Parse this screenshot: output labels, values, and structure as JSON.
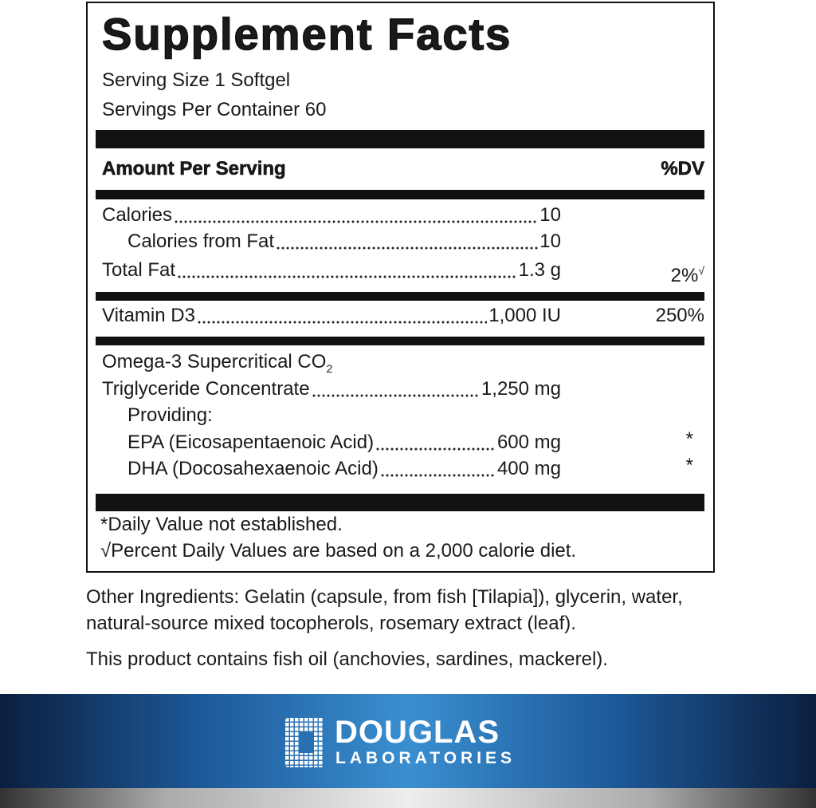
{
  "panel": {
    "title": "Supplement Facts",
    "serving_size": "Serving Size 1 Softgel",
    "servings_per_container": "Servings Per Container 60",
    "header": {
      "amount": "Amount Per Serving",
      "dv": "%DV"
    },
    "calories": {
      "name": "Calories",
      "amount": "10"
    },
    "calories_from_fat": {
      "name": "Calories from Fat",
      "amount": "10"
    },
    "total_fat": {
      "name": "Total Fat",
      "amount": "1.3 g",
      "dv": "2%",
      "dv_mark": "√"
    },
    "vitamin_d3": {
      "name": "Vitamin D3",
      "amount": "1,000 IU",
      "dv": "250%"
    },
    "omega3": {
      "name_line1": "Omega-3 Supercritical CO",
      "name_subscript": "2",
      "name_line2": "Triglyceride Concentrate",
      "amount": "1,250 mg",
      "providing": "Providing:"
    },
    "epa": {
      "name": "EPA (Eicosapentaenoic Acid)",
      "amount": "600 mg",
      "dv": "*"
    },
    "dha": {
      "name": "DHA (Docosahexaenoic Acid)",
      "amount": "400 mg",
      "dv": "*"
    },
    "footnotes": [
      "*Daily Value not established.",
      "√Percent Daily Values are based on a 2,000 calorie diet."
    ]
  },
  "other_ingredients": "Other Ingredients: Gelatin (capsule, from fish [Tilapia]), glycerin, water, natural-source mixed tocopherols, rosemary extract (leaf).",
  "allergen_note": "This product contains fish oil (anchovies, sardines, mackerel).",
  "brand": {
    "name": "DOUGLAS",
    "subtitle": "LABORATORIES"
  }
}
